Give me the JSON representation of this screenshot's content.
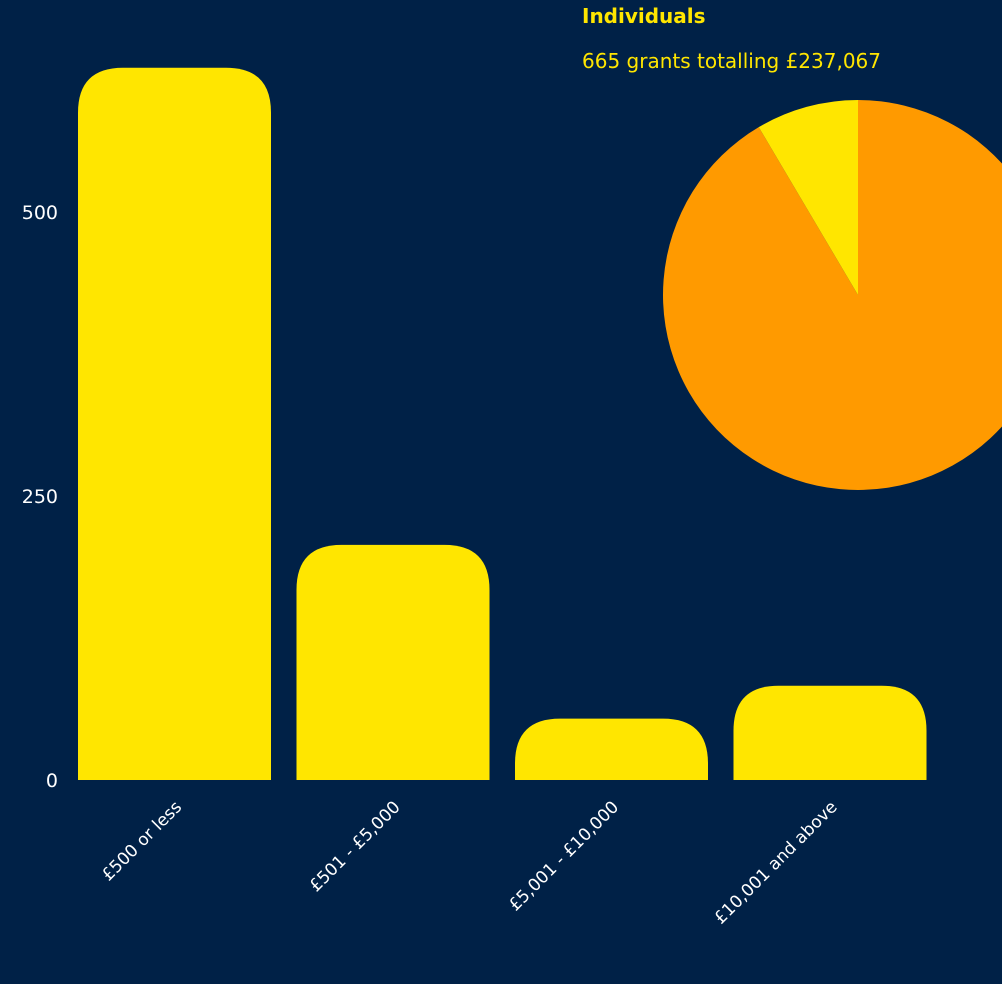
{
  "chart_data": [
    {
      "type": "bar",
      "categories": [
        "£500 or less",
        "£501 - £5,000",
        "£5,001 - £10,000",
        "£10,001 and above"
      ],
      "values": [
        627,
        207,
        54,
        83
      ],
      "yticks": [
        0,
        250,
        500
      ],
      "ylim": [
        0,
        600
      ],
      "grid": false,
      "colors": {
        "bar": "#ffe600",
        "text": "#ffffff",
        "background": "#002147"
      }
    },
    {
      "type": "pie",
      "title": "Individuals",
      "subtitle": "665 grants totalling £237,067",
      "slices": [
        {
          "share": 0.915,
          "color": "#ff9a00"
        },
        {
          "share": 0.085,
          "color": "#ffe600"
        }
      ]
    }
  ]
}
